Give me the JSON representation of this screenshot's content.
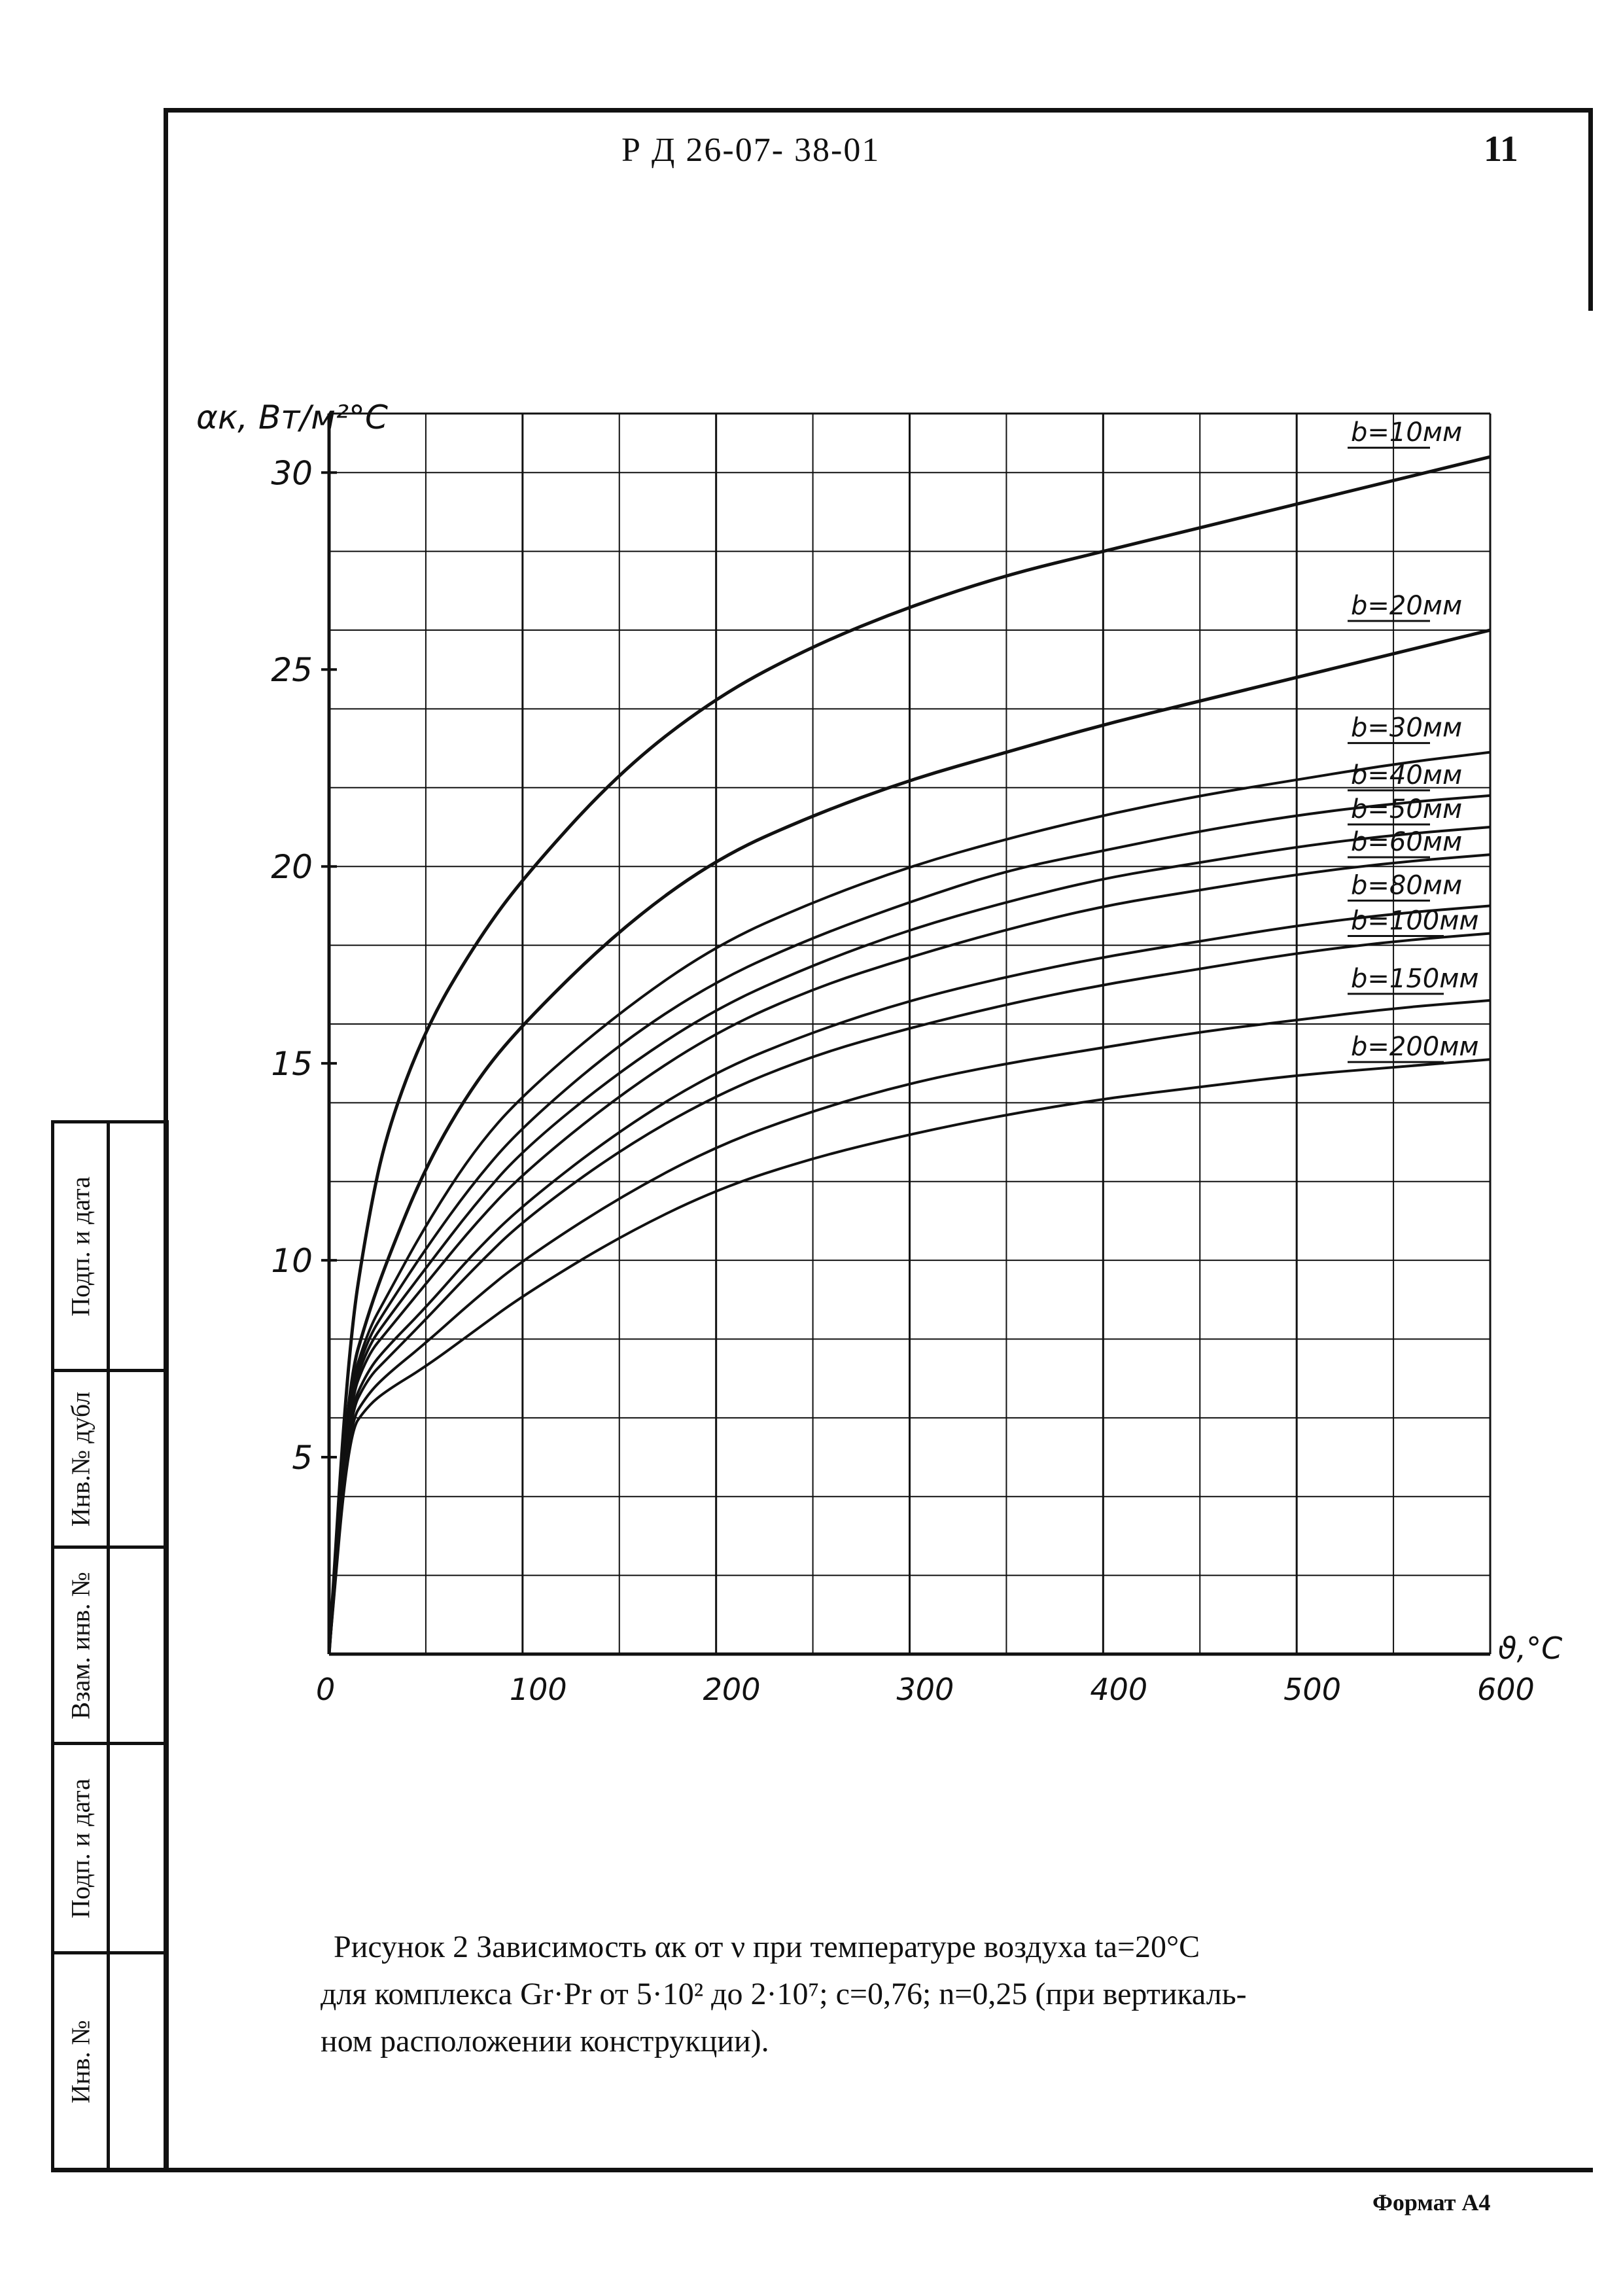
{
  "header": {
    "doc_code": "Р Д 26-07- 38-01",
    "page_number": "11"
  },
  "stamp": {
    "labels": [
      "Подп. и дата",
      "Инв.№ дубл",
      "Взам. инв. №",
      "Подп. и дата",
      "Инв. №"
    ]
  },
  "chart_data": {
    "type": "line",
    "ylabel": "αк, Вт/м²°С",
    "xlabel": "ϑ,°С",
    "xlim": [
      0,
      600
    ],
    "ylim": [
      0,
      31.5
    ],
    "x_ticks": [
      "0",
      "100",
      "200",
      "300",
      "400",
      "500",
      "600"
    ],
    "y_ticks": [
      "5",
      "10",
      "15",
      "20",
      "25",
      "30"
    ],
    "grid": true,
    "series": [
      {
        "name": "b=10мм",
        "x": [
          0,
          10,
          20,
          30,
          50,
          75,
          100,
          150,
          200,
          250,
          300,
          350,
          400,
          450,
          500,
          550,
          600
        ],
        "y": [
          0,
          7.8,
          11.0,
          13.3,
          15.9,
          18.0,
          19.7,
          22.4,
          24.3,
          25.6,
          26.6,
          27.4,
          28.0,
          28.6,
          29.2,
          29.8,
          30.4
        ]
      },
      {
        "name": "b=20мм",
        "x": [
          0,
          10,
          20,
          30,
          50,
          75,
          100,
          150,
          200,
          250,
          300,
          350,
          400,
          450,
          500,
          550,
          600
        ],
        "y": [
          0,
          6.9,
          8.6,
          10.0,
          12.4,
          14.5,
          16.0,
          18.4,
          20.2,
          21.3,
          22.2,
          22.9,
          23.6,
          24.2,
          24.8,
          25.4,
          26.0
        ]
      },
      {
        "name": "b=30мм",
        "x": [
          0,
          10,
          20,
          30,
          50,
          75,
          100,
          150,
          200,
          250,
          300,
          350,
          400,
          450,
          500,
          550,
          600
        ],
        "y": [
          0,
          6.6,
          8.2,
          9.1,
          10.9,
          12.8,
          14.2,
          16.3,
          18.0,
          19.1,
          20.0,
          20.7,
          21.3,
          21.8,
          22.2,
          22.6,
          22.9
        ]
      },
      {
        "name": "b=40мм",
        "x": [
          0,
          10,
          20,
          30,
          50,
          75,
          100,
          150,
          200,
          250,
          300,
          350,
          400,
          450,
          500,
          550,
          600
        ],
        "y": [
          0,
          6.5,
          8.0,
          8.8,
          10.3,
          12.0,
          13.4,
          15.5,
          17.1,
          18.2,
          19.1,
          19.9,
          20.4,
          20.9,
          21.3,
          21.6,
          21.8
        ]
      },
      {
        "name": "b=50мм",
        "x": [
          0,
          10,
          20,
          30,
          50,
          75,
          100,
          150,
          200,
          250,
          300,
          350,
          400,
          450,
          500,
          550,
          600
        ],
        "y": [
          0,
          6.4,
          7.8,
          8.5,
          9.8,
          11.4,
          12.8,
          14.8,
          16.4,
          17.5,
          18.4,
          19.1,
          19.7,
          20.1,
          20.5,
          20.8,
          21.0
        ]
      },
      {
        "name": "b=60мм",
        "x": [
          0,
          10,
          20,
          30,
          50,
          75,
          100,
          150,
          200,
          250,
          300,
          350,
          400,
          450,
          500,
          550,
          600
        ],
        "y": [
          0,
          6.3,
          7.6,
          8.2,
          9.4,
          10.9,
          12.2,
          14.2,
          15.8,
          16.9,
          17.7,
          18.4,
          19.0,
          19.4,
          19.8,
          20.1,
          20.3
        ]
      },
      {
        "name": "b=80мм",
        "x": [
          0,
          10,
          20,
          30,
          50,
          75,
          100,
          150,
          200,
          250,
          300,
          350,
          400,
          450,
          500,
          550,
          600
        ],
        "y": [
          0,
          6.1,
          7.2,
          7.8,
          8.8,
          10.2,
          11.4,
          13.3,
          14.8,
          15.8,
          16.6,
          17.2,
          17.7,
          18.1,
          18.5,
          18.8,
          19.0
        ]
      },
      {
        "name": "b=100мм",
        "x": [
          0,
          10,
          20,
          30,
          50,
          75,
          100,
          150,
          200,
          250,
          300,
          350,
          400,
          450,
          500,
          550,
          600
        ],
        "y": [
          0,
          6.0,
          7.0,
          7.5,
          8.5,
          9.8,
          11.0,
          12.8,
          14.2,
          15.2,
          15.9,
          16.5,
          17.0,
          17.4,
          17.8,
          18.1,
          18.3
        ]
      },
      {
        "name": "b=150мм",
        "x": [
          0,
          10,
          20,
          30,
          50,
          75,
          100,
          150,
          200,
          250,
          300,
          350,
          400,
          450,
          500,
          550,
          600
        ],
        "y": [
          0,
          5.8,
          6.6,
          7.1,
          7.9,
          9.0,
          10.0,
          11.6,
          12.9,
          13.8,
          14.5,
          15.0,
          15.4,
          15.8,
          16.1,
          16.4,
          16.6
        ]
      },
      {
        "name": "b=200мм",
        "x": [
          0,
          10,
          20,
          30,
          50,
          75,
          100,
          150,
          200,
          250,
          300,
          350,
          400,
          450,
          500,
          550,
          600
        ],
        "y": [
          0,
          5.6,
          6.3,
          6.7,
          7.3,
          8.2,
          9.1,
          10.6,
          11.8,
          12.6,
          13.2,
          13.7,
          14.1,
          14.4,
          14.7,
          14.9,
          15.1
        ]
      }
    ]
  },
  "caption": {
    "line1": "Рисунок 2  Зависимость αк от ν при температуре воздуха tа=20°С",
    "line2": "для комплекса Gr·Pr от 5·10² до 2·10⁷; с=0,76; n=0,25 (при вертикаль-",
    "line3": "ном расположении конструкции)."
  },
  "footer": {
    "format": "Формат А4"
  }
}
